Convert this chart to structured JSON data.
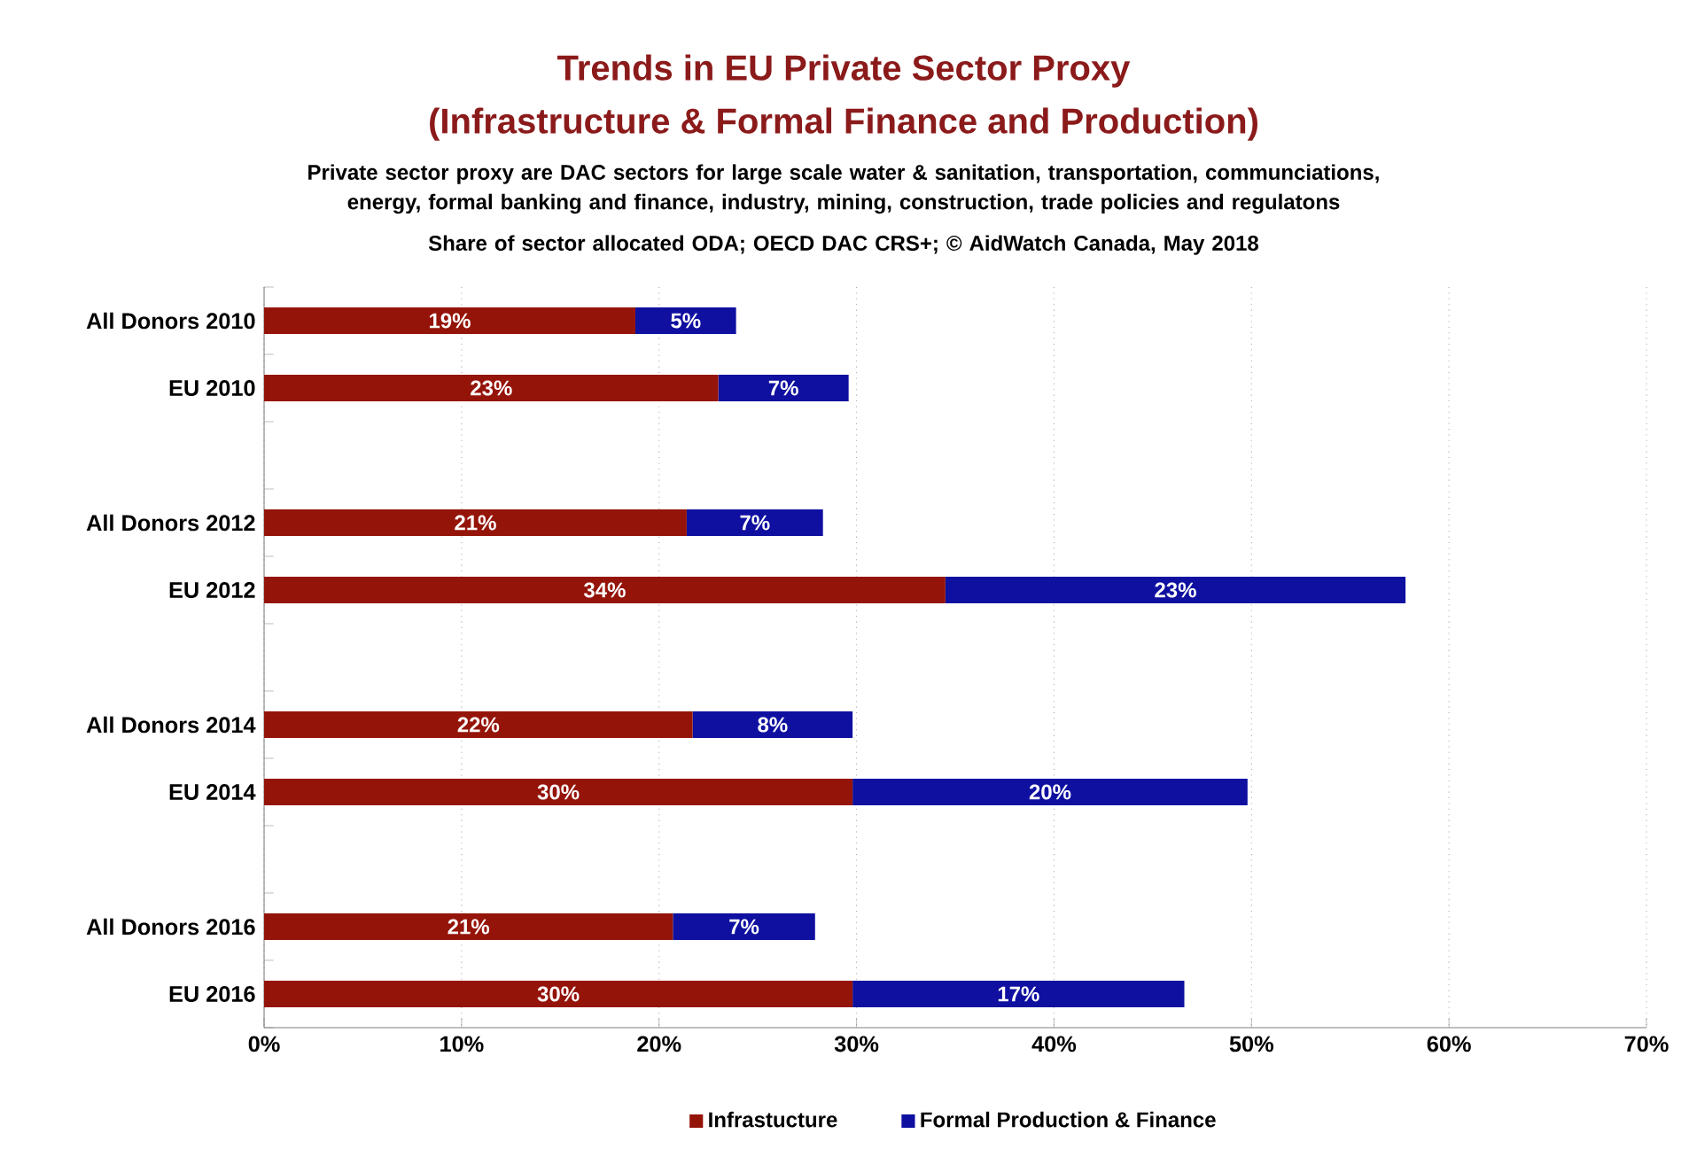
{
  "chart_data": {
    "type": "bar",
    "orientation": "horizontal",
    "stacked": true,
    "title": "Trends in EU Private Sector Proxy",
    "subtitle": "(Infrastructure & Formal Finance and Production)",
    "annotations": [
      "Private sector proxy are DAC sectors for large scale water & sanitation, transportation, communciations, energy, formal banking and finance, industry, mining, construction, trade policies and regulatons",
      "Share of sector allocated ODA;     OECD DAC CRS+;     © AidWatch Canada, May 2018"
    ],
    "categories": [
      "All Donors 2010",
      "EU 2010",
      null,
      "All Donors 2012",
      "EU 2012",
      null,
      "All Donors 2014",
      "EU 2014",
      null,
      "All Donors 2016",
      "EU 2016"
    ],
    "series": [
      {
        "name": "Infrastucture",
        "color": "#951409",
        "values": [
          18.8,
          23.0,
          null,
          21.4,
          34.5,
          null,
          21.7,
          29.8,
          null,
          20.7,
          29.8
        ],
        "value_labels": [
          "19%",
          "23%",
          null,
          "21%",
          "34%",
          null,
          "22%",
          "30%",
          null,
          "21%",
          "30%"
        ]
      },
      {
        "name": "Formal Production & Finance",
        "color": "#0f10a0",
        "values": [
          5.1,
          6.6,
          null,
          6.9,
          23.3,
          null,
          8.1,
          20.0,
          null,
          7.2,
          16.8
        ],
        "value_labels": [
          "5%",
          "7%",
          null,
          "7%",
          "23%",
          null,
          "8%",
          "20%",
          null,
          "7%",
          "17%"
        ]
      }
    ],
    "xlim": [
      0,
      70
    ],
    "xticks": [
      {
        "value": 0,
        "label": "0%"
      },
      {
        "value": 10,
        "label": "10%"
      },
      {
        "value": 20,
        "label": "20%"
      },
      {
        "value": 30,
        "label": "30%"
      },
      {
        "value": 40,
        "label": "40%"
      },
      {
        "value": 50,
        "label": "50%"
      },
      {
        "value": 60,
        "label": "60%"
      },
      {
        "value": 70,
        "label": "70%"
      }
    ],
    "grid": "x",
    "legend": "bottom"
  }
}
